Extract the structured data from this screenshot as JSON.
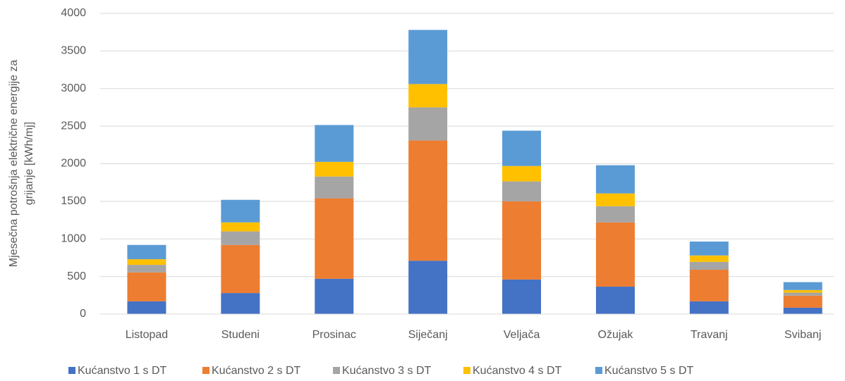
{
  "chart_data": {
    "type": "stacked_bar",
    "y_label": [
      "Mjesečna potrošnja električne energije za",
      "grijanje [kWh/mj]"
    ],
    "categories": [
      "Listopad",
      "Studeni",
      "Prosinac",
      "Siječanj",
      "Veljača",
      "Ožujak",
      "Travanj",
      "Svibanj"
    ],
    "series": [
      {
        "name": "Kućanstvo 1 s DT",
        "color": "#4472c4",
        "values": [
          170,
          280,
          470,
          710,
          460,
          365,
          170,
          85
        ]
      },
      {
        "name": "Kućanstvo 2 s DT",
        "color": "#ed7d31",
        "values": [
          385,
          640,
          1070,
          1600,
          1040,
          855,
          420,
          160
        ]
      },
      {
        "name": "Kućanstvo 3 s DT",
        "color": "#a5a5a5",
        "values": [
          100,
          180,
          290,
          440,
          265,
          215,
          105,
          40
        ]
      },
      {
        "name": "Kućanstvo 4 s DT",
        "color": "#ffc000",
        "values": [
          75,
          120,
          195,
          310,
          205,
          170,
          85,
          35
        ]
      },
      {
        "name": "Kućanstvo 5 s DT",
        "color": "#5b9bd5",
        "values": [
          190,
          300,
          490,
          720,
          470,
          375,
          185,
          105
        ]
      }
    ],
    "ylim": [
      0,
      4000
    ],
    "yticks": [
      0,
      500,
      1000,
      1500,
      2000,
      2500,
      3000,
      3500,
      4000
    ],
    "grid": true,
    "legend": "bottom"
  }
}
